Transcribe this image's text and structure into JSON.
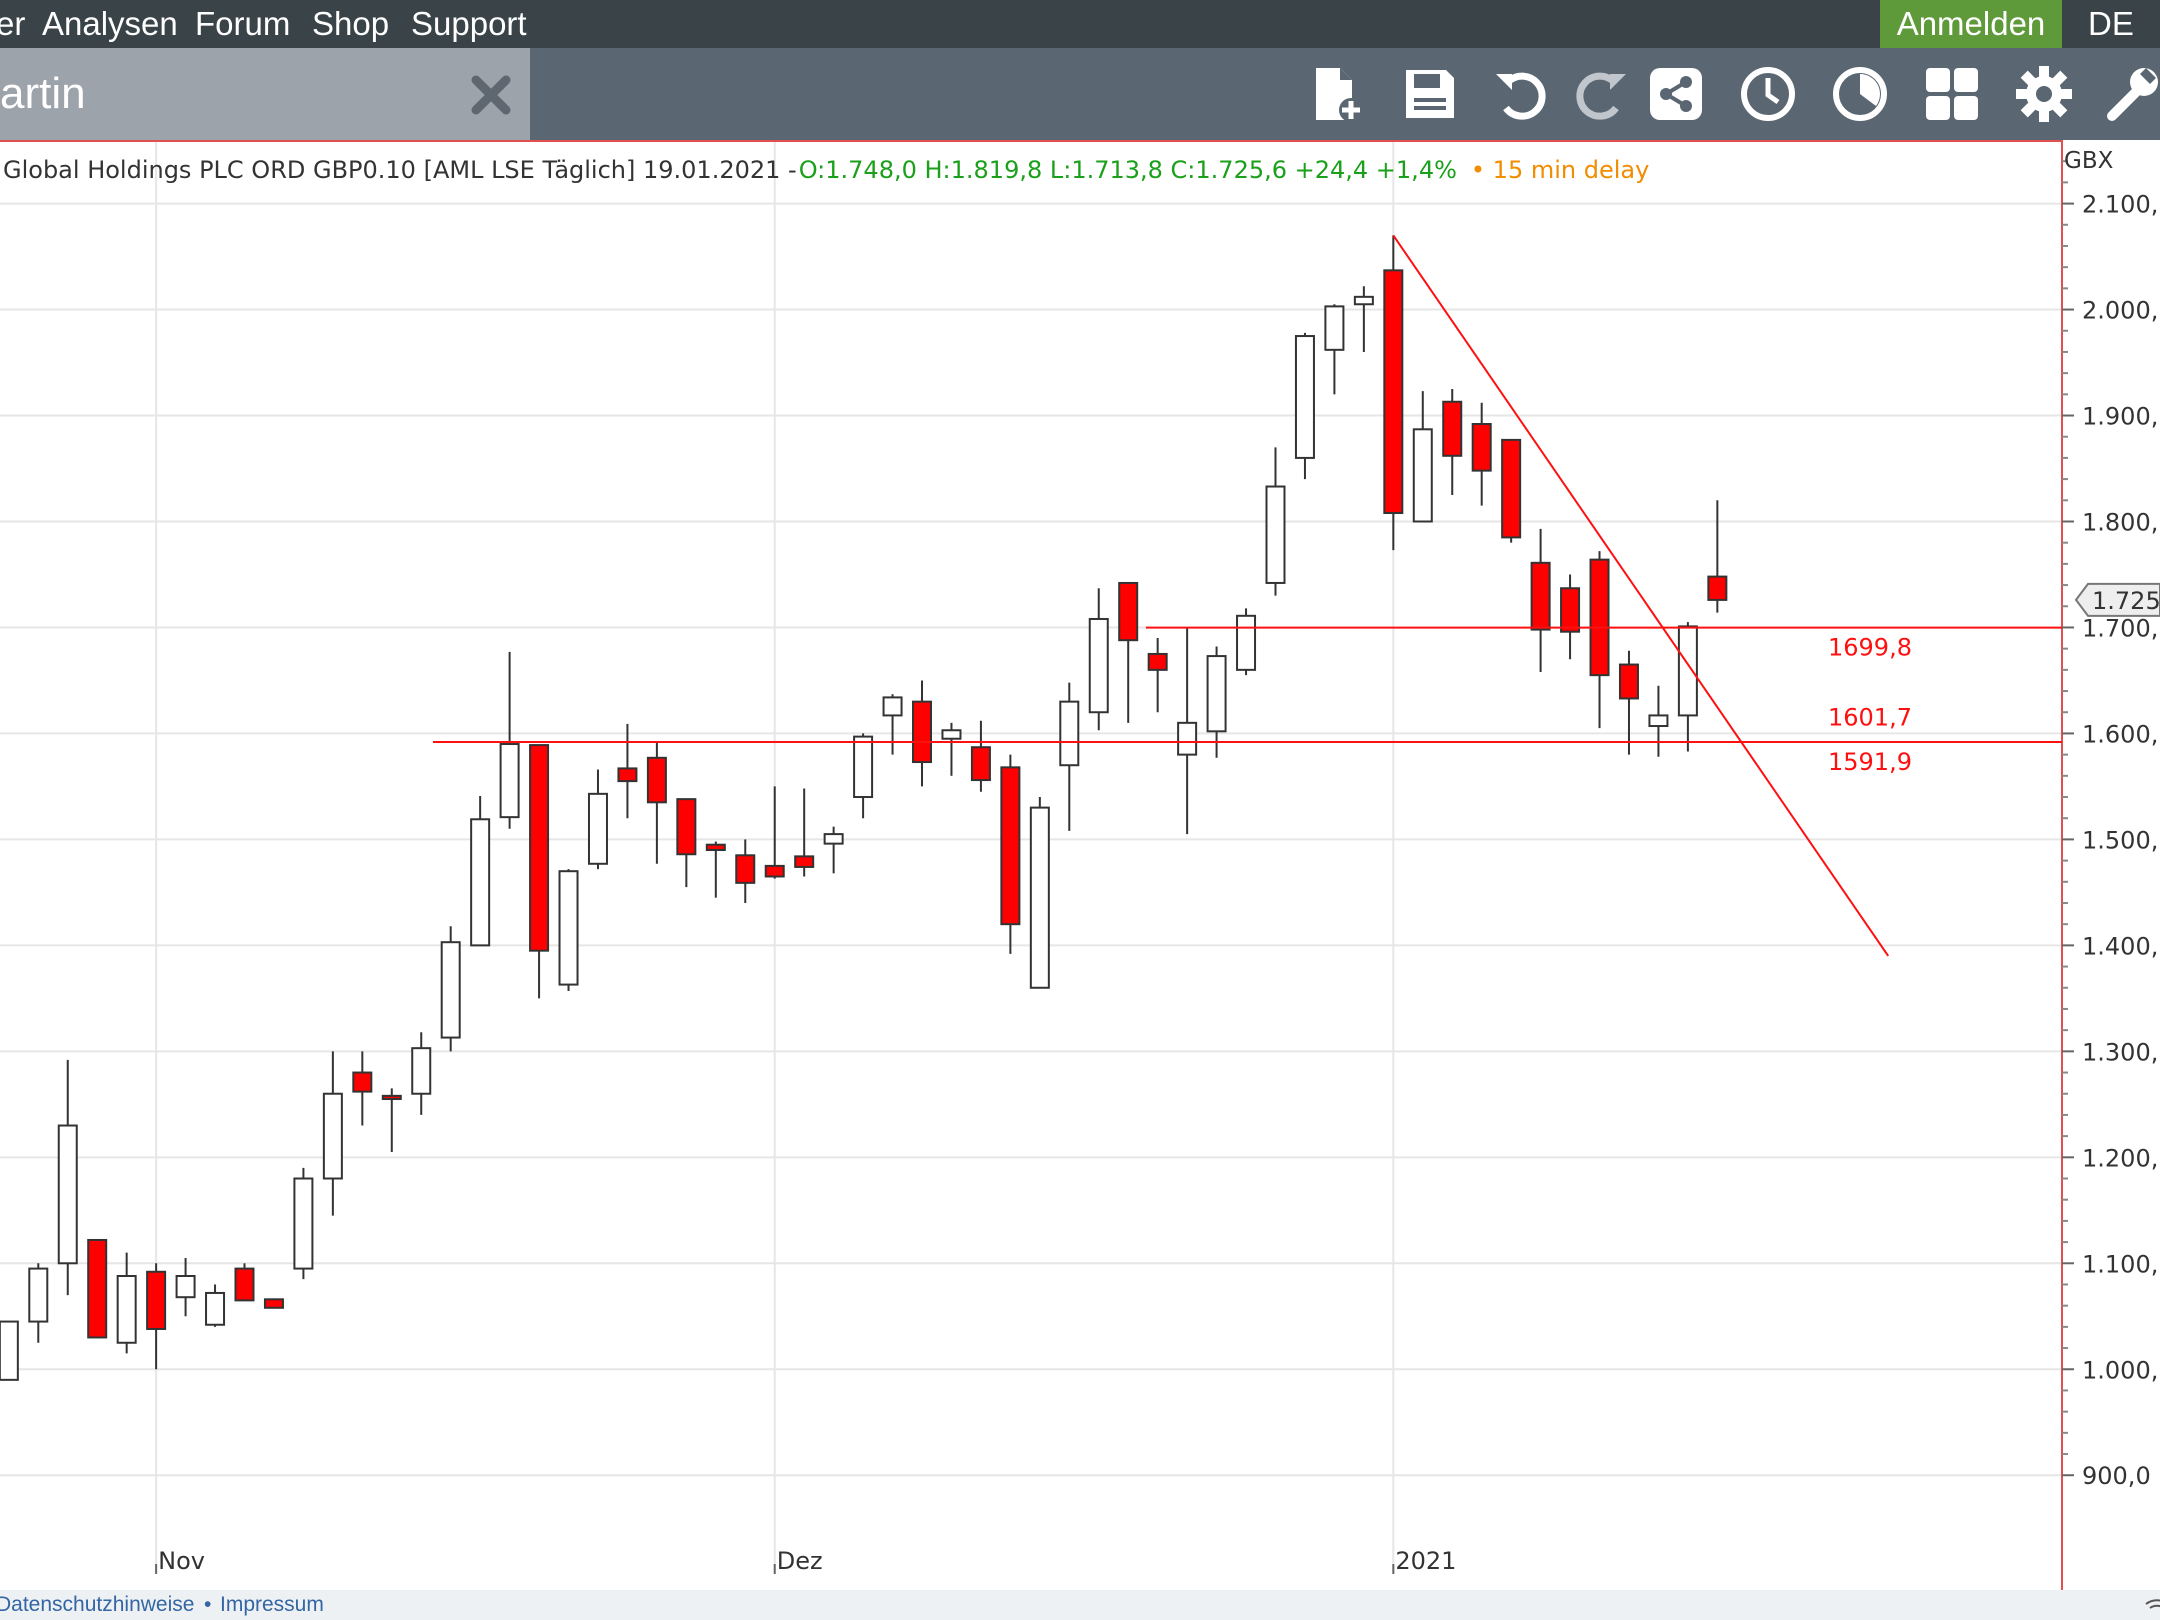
{
  "nav": {
    "items": [
      "er",
      "Analysen",
      "Forum",
      "Shop",
      "Support"
    ],
    "login": "Anmelden",
    "lang": "DE"
  },
  "tab": {
    "title": "artin"
  },
  "toolbar_icons": [
    "new-file-icon",
    "save-icon",
    "undo-icon",
    "redo-icon",
    "share-icon",
    "clock-icon",
    "timer-icon",
    "grid-icon",
    "gear-icon",
    "wrench-icon"
  ],
  "footer": {
    "link1": "Datenschutzhinweise",
    "sep": "•",
    "link2": "Impressum"
  },
  "chart_data": {
    "type": "candlestick",
    "header": {
      "name": "Global Holdings PLC ORD GBP0.10 [AML LSE Täglich] 19.01.2021 - ",
      "ohlc": "O:1.748,0 H:1.819,8 L:1.713,8 C:1.725,6 +24,4 +1,4%",
      "delay": "• 15 min delay"
    },
    "currency": "GBX",
    "ylim": [
      820,
      2160
    ],
    "yticks": [
      900,
      1000,
      1100,
      1200,
      1300,
      1400,
      1500,
      1600,
      1700,
      1800,
      1900,
      2000,
      2100
    ],
    "ytick_labels": [
      "900,0",
      "1.000,",
      "1.100,",
      "1.200,",
      "1.300,",
      "1.400,",
      "1.500,",
      "1.600,",
      "1.700,",
      "1.800,",
      "1.900,",
      "2.000,",
      "2.100,"
    ],
    "xlim": [
      -5.3,
      64.7
    ],
    "xticks": [
      {
        "x": 0,
        "label": "Nov"
      },
      {
        "x": 21,
        "label": "Dez"
      },
      {
        "x": 42,
        "label": "2021"
      }
    ],
    "candles": [
      {
        "x": -5,
        "o": 990,
        "h": 1045,
        "l": 990,
        "c": 1045
      },
      {
        "x": -4,
        "o": 1045,
        "h": 1100,
        "l": 1025,
        "c": 1095
      },
      {
        "x": -3,
        "o": 1100,
        "h": 1292,
        "l": 1070,
        "c": 1230
      },
      {
        "x": -2,
        "o": 1122,
        "h": 1122,
        "l": 1030,
        "c": 1030
      },
      {
        "x": -1,
        "o": 1025,
        "h": 1110,
        "l": 1015,
        "c": 1088
      },
      {
        "x": 0,
        "o": 1092,
        "h": 1100,
        "l": 1000,
        "c": 1038
      },
      {
        "x": 1,
        "o": 1068,
        "h": 1105,
        "l": 1050,
        "c": 1088
      },
      {
        "x": 2,
        "o": 1042,
        "h": 1080,
        "l": 1040,
        "c": 1072
      },
      {
        "x": 3,
        "o": 1095,
        "h": 1100,
        "l": 1065,
        "c": 1065
      },
      {
        "x": 4,
        "o": 1066,
        "h": 1066,
        "l": 1058,
        "c": 1058
      },
      {
        "x": 5,
        "o": 1095,
        "h": 1190,
        "l": 1085,
        "c": 1180
      },
      {
        "x": 6,
        "o": 1180,
        "h": 1300,
        "l": 1145,
        "c": 1260
      },
      {
        "x": 7,
        "o": 1280,
        "h": 1300,
        "l": 1230,
        "c": 1262
      },
      {
        "x": 8,
        "o": 1258,
        "h": 1265,
        "l": 1205,
        "c": 1255
      },
      {
        "x": 9,
        "o": 1260,
        "h": 1318,
        "l": 1240,
        "c": 1303
      },
      {
        "x": 10,
        "o": 1313,
        "h": 1418,
        "l": 1300,
        "c": 1403
      },
      {
        "x": 11,
        "o": 1400,
        "h": 1541,
        "l": 1400,
        "c": 1519
      },
      {
        "x": 12,
        "o": 1521,
        "h": 1677,
        "l": 1510,
        "c": 1590
      },
      {
        "x": 13,
        "o": 1589,
        "h": 1589,
        "l": 1350,
        "c": 1395
      },
      {
        "x": 14,
        "o": 1363,
        "h": 1472,
        "l": 1357,
        "c": 1470
      },
      {
        "x": 15,
        "o": 1477,
        "h": 1566,
        "l": 1472,
        "c": 1543
      },
      {
        "x": 16,
        "o": 1567,
        "h": 1609,
        "l": 1520,
        "c": 1555
      },
      {
        "x": 17,
        "o": 1577,
        "h": 1592,
        "l": 1477,
        "c": 1535
      },
      {
        "x": 18,
        "o": 1538,
        "h": 1538,
        "l": 1455,
        "c": 1486
      },
      {
        "x": 19,
        "o": 1495,
        "h": 1498,
        "l": 1445,
        "c": 1490
      },
      {
        "x": 20,
        "o": 1485,
        "h": 1500,
        "l": 1440,
        "c": 1459
      },
      {
        "x": 21,
        "o": 1475,
        "h": 1550,
        "l": 1463,
        "c": 1465
      },
      {
        "x": 22,
        "o": 1484,
        "h": 1548,
        "l": 1465,
        "c": 1474
      },
      {
        "x": 23,
        "o": 1496,
        "h": 1512,
        "l": 1468,
        "c": 1505
      },
      {
        "x": 24,
        "o": 1540,
        "h": 1600,
        "l": 1520,
        "c": 1597
      },
      {
        "x": 25,
        "o": 1617,
        "h": 1637,
        "l": 1580,
        "c": 1634
      },
      {
        "x": 26,
        "o": 1630,
        "h": 1650,
        "l": 1550,
        "c": 1573
      },
      {
        "x": 27,
        "o": 1595,
        "h": 1610,
        "l": 1560,
        "c": 1603
      },
      {
        "x": 28,
        "o": 1587,
        "h": 1612,
        "l": 1545,
        "c": 1556
      },
      {
        "x": 29,
        "o": 1568,
        "h": 1580,
        "l": 1392,
        "c": 1420
      },
      {
        "x": 30,
        "o": 1360,
        "h": 1540,
        "l": 1360,
        "c": 1530
      },
      {
        "x": 31,
        "o": 1570,
        "h": 1648,
        "l": 1508,
        "c": 1630
      },
      {
        "x": 32,
        "o": 1620,
        "h": 1737,
        "l": 1603,
        "c": 1708
      },
      {
        "x": 33,
        "o": 1742,
        "h": 1742,
        "l": 1610,
        "c": 1688
      },
      {
        "x": 34,
        "o": 1675,
        "h": 1690,
        "l": 1620,
        "c": 1660
      },
      {
        "x": 35,
        "o": 1580,
        "h": 1700,
        "l": 1505,
        "c": 1610
      },
      {
        "x": 36,
        "o": 1602,
        "h": 1682,
        "l": 1577,
        "c": 1673
      },
      {
        "x": 37,
        "o": 1660,
        "h": 1718,
        "l": 1655,
        "c": 1711
      },
      {
        "x": 38,
        "o": 1742,
        "h": 1870,
        "l": 1730,
        "c": 1833
      },
      {
        "x": 39,
        "o": 1860,
        "h": 1978,
        "l": 1840,
        "c": 1975
      },
      {
        "x": 40,
        "o": 1962,
        "h": 2005,
        "l": 1920,
        "c": 2003
      },
      {
        "x": 41,
        "o": 2005,
        "h": 2022,
        "l": 1960,
        "c": 2012
      },
      {
        "x": 42,
        "o": 2037,
        "h": 2070,
        "l": 1773,
        "c": 1808
      },
      {
        "x": 43,
        "o": 1800,
        "h": 1923,
        "l": 1800,
        "c": 1887
      },
      {
        "x": 44,
        "o": 1913,
        "h": 1925,
        "l": 1825,
        "c": 1862
      },
      {
        "x": 45,
        "o": 1892,
        "h": 1912,
        "l": 1815,
        "c": 1848
      },
      {
        "x": 46,
        "o": 1877,
        "h": 1877,
        "l": 1780,
        "c": 1785
      },
      {
        "x": 47,
        "o": 1761,
        "h": 1793,
        "l": 1658,
        "c": 1698
      },
      {
        "x": 48,
        "o": 1737,
        "h": 1750,
        "l": 1670,
        "c": 1696
      },
      {
        "x": 49,
        "o": 1764,
        "h": 1772,
        "l": 1605,
        "c": 1655
      },
      {
        "x": 50,
        "o": 1665,
        "h": 1678,
        "l": 1580,
        "c": 1633
      },
      {
        "x": 51,
        "o": 1607,
        "h": 1645,
        "l": 1578,
        "c": 1617
      },
      {
        "x": 52,
        "o": 1617,
        "h": 1705,
        "l": 1583,
        "c": 1701
      },
      {
        "x": 53,
        "o": 1748,
        "h": 1820,
        "l": 1714,
        "c": 1726
      }
    ],
    "hlines": [
      {
        "y": 1699.8,
        "x_start": 33.6,
        "x_end": 64.7,
        "label": "1699,8"
      },
      {
        "y": 1591.9,
        "x_start": 9.4,
        "x_end": 64.7,
        "label": "1591,9"
      }
    ],
    "hline_text_labels": [
      {
        "y": 1601.7,
        "label": "1601,7"
      }
    ],
    "trendline": {
      "x1": 42,
      "y1": 2070,
      "x2": 58.8,
      "y2": 1390
    },
    "current_price_label": "1.725,",
    "colors": {
      "down": "#ff0000",
      "up": "#ffffff",
      "line": "#ff1010",
      "ohlc_green": "#1aa01a",
      "delay": "#f28c00"
    }
  }
}
